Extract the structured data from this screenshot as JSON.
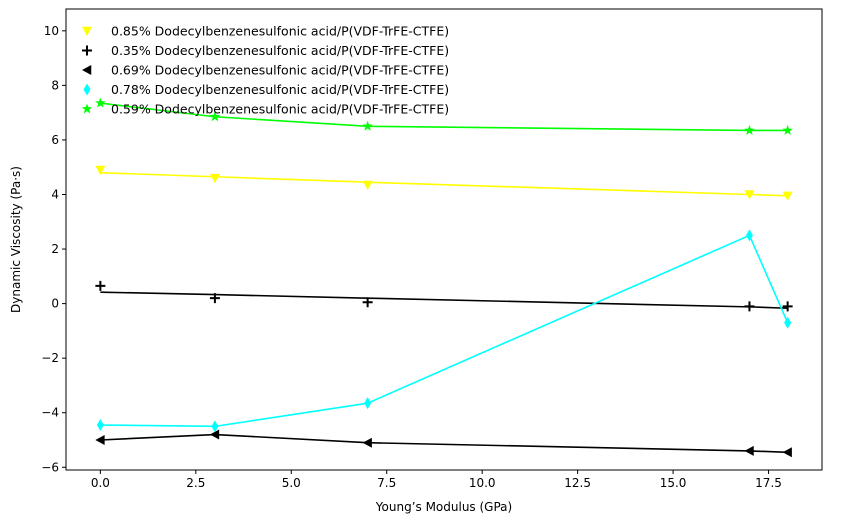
{
  "chart_data": {
    "type": "line",
    "title": "",
    "xlabel": "Young’s Modulus (GPa)",
    "ylabel": "Dynamic Viscosity (Pa·s)",
    "xlim": [
      -0.9,
      18.9
    ],
    "ylim": [
      -6.1,
      10.8
    ],
    "grid": false,
    "legend_position": "top-left",
    "x_ticks": [
      0.0,
      2.5,
      5.0,
      7.5,
      10.0,
      12.5,
      15.0,
      17.5
    ],
    "x_tick_labels": [
      "0.0",
      "2.5",
      "5.0",
      "7.5",
      "10.0",
      "12.5",
      "15.0",
      "17.5"
    ],
    "y_ticks": [
      -6,
      -4,
      -2,
      0,
      2,
      4,
      6,
      8,
      10
    ],
    "y_tick_labels": [
      "−6",
      "−4",
      "−2",
      "0",
      "2",
      "4",
      "6",
      "8",
      "10"
    ],
    "series": [
      {
        "name": "0.85% Dodecylbenzenesulfonic acid/P(VDF-TrFE-CTFE)",
        "color": "#ffff00",
        "marker": "triangle-down",
        "points": [
          {
            "x": 0,
            "y": 4.9
          },
          {
            "x": 3,
            "y": 4.6
          },
          {
            "x": 7,
            "y": 4.35
          },
          {
            "x": 17,
            "y": 4.0
          },
          {
            "x": 18,
            "y": 3.95
          }
        ],
        "line": [
          {
            "x": 0,
            "y": 4.8
          },
          {
            "x": 3,
            "y": 4.65
          },
          {
            "x": 7,
            "y": 4.45
          },
          {
            "x": 17,
            "y": 4.0
          },
          {
            "x": 18,
            "y": 3.95
          }
        ]
      },
      {
        "name": "0.35% Dodecylbenzenesulfonic acid/P(VDF-TrFE-CTFE)",
        "color": "#000000",
        "marker": "plus",
        "points": [
          {
            "x": 0,
            "y": 0.65
          },
          {
            "x": 3,
            "y": 0.2
          },
          {
            "x": 7,
            "y": 0.05
          },
          {
            "x": 17,
            "y": -0.1
          },
          {
            "x": 18,
            "y": -0.1
          }
        ],
        "line": [
          {
            "x": 0,
            "y": 0.42
          },
          {
            "x": 3,
            "y": 0.33
          },
          {
            "x": 7,
            "y": 0.2
          },
          {
            "x": 17,
            "y": -0.12
          },
          {
            "x": 18,
            "y": -0.17
          }
        ]
      },
      {
        "name": "0.69% Dodecylbenzenesulfonic acid/P(VDF-TrFE-CTFE)",
        "color": "#000000",
        "marker": "triangle-left",
        "points": [
          {
            "x": 0,
            "y": -5.0
          },
          {
            "x": 3,
            "y": -4.8
          },
          {
            "x": 7,
            "y": -5.1
          },
          {
            "x": 17,
            "y": -5.4
          },
          {
            "x": 18,
            "y": -5.45
          }
        ],
        "line": [
          {
            "x": 0,
            "y": -5.0
          },
          {
            "x": 3,
            "y": -4.8
          },
          {
            "x": 7,
            "y": -5.1
          },
          {
            "x": 17,
            "y": -5.4
          },
          {
            "x": 18,
            "y": -5.45
          }
        ]
      },
      {
        "name": "0.78% Dodecylbenzenesulfonic acid/P(VDF-TrFE-CTFE)",
        "color": "#00ffff",
        "marker": "thin-diamond",
        "points": [
          {
            "x": 0,
            "y": -4.45
          },
          {
            "x": 3,
            "y": -4.5
          },
          {
            "x": 7,
            "y": -3.65
          },
          {
            "x": 17,
            "y": 2.5
          },
          {
            "x": 18,
            "y": -0.7
          }
        ],
        "line": [
          {
            "x": 0,
            "y": -4.45
          },
          {
            "x": 3,
            "y": -4.5
          },
          {
            "x": 7,
            "y": -3.65
          },
          {
            "x": 17,
            "y": 2.5
          },
          {
            "x": 18,
            "y": -0.7
          }
        ]
      },
      {
        "name": "0.59% Dodecylbenzenesulfonic acid/P(VDF-TrFE-CTFE)",
        "color": "#00ff00",
        "marker": "star",
        "points": [
          {
            "x": 0,
            "y": 7.35
          },
          {
            "x": 3,
            "y": 6.85
          },
          {
            "x": 7,
            "y": 6.5
          },
          {
            "x": 17,
            "y": 6.35
          },
          {
            "x": 18,
            "y": 6.35
          }
        ],
        "line": [
          {
            "x": 0,
            "y": 7.35
          },
          {
            "x": 3,
            "y": 6.85
          },
          {
            "x": 7,
            "y": 6.5
          },
          {
            "x": 17,
            "y": 6.35
          },
          {
            "x": 18,
            "y": 6.35
          }
        ]
      }
    ]
  }
}
